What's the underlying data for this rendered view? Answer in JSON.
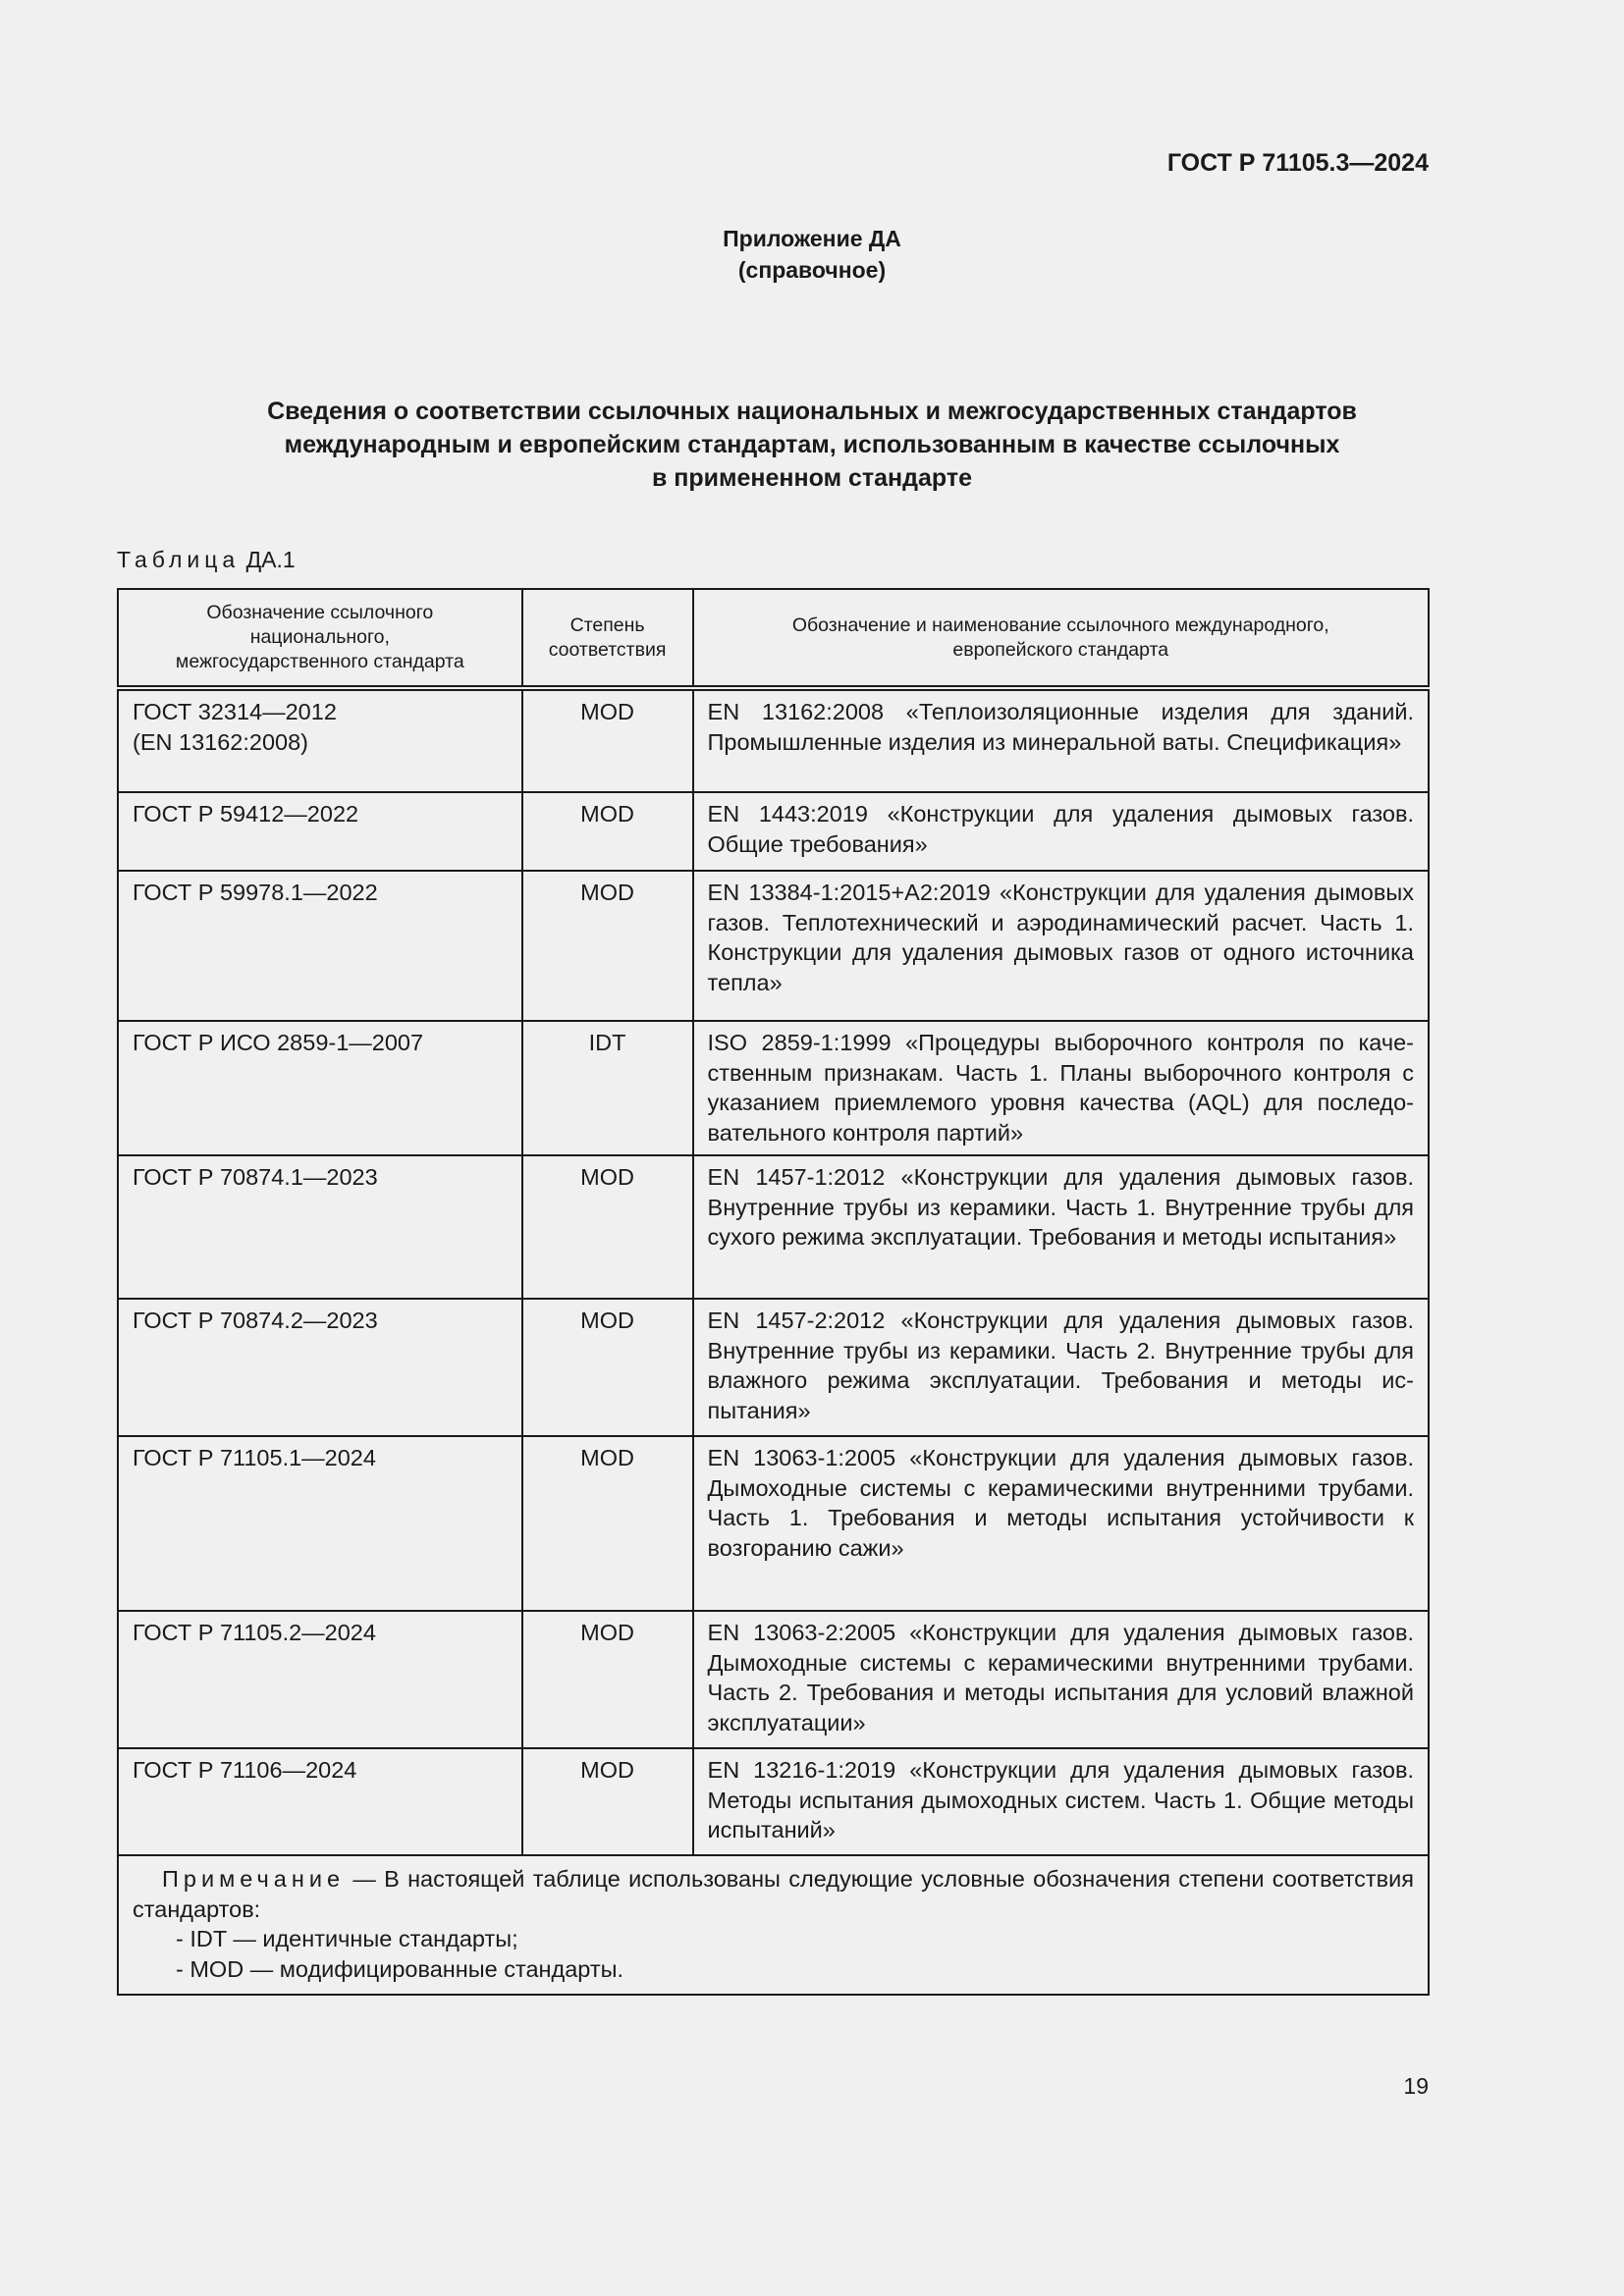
{
  "header": {
    "doc_code": "ГОСТ Р 71105.3—2024"
  },
  "annex": {
    "title": "Приложение ДА",
    "type": "(справочное)"
  },
  "heading": [
    "Сведения о соответствии ссылочных национальных и межгосударственных стандартов",
    "международным и европейским стандартам, использованным в качестве ссылочных",
    "в  примененном стандарте"
  ],
  "table": {
    "label_prefix": "Таблица",
    "label_number": "ДА.1",
    "columns": [
      "Обозначение ссылочного национального, межгосударственного стандарта",
      "Степень соответствия",
      "Обозначение и наименование ссылочного международного, европейского стандарта"
    ],
    "rows": [
      {
        "national": "ГОСТ 32314—2012",
        "national_extra": "(EN 13162:2008)",
        "degree": "MOD",
        "international": "EN 13162:2008 «Теплоизоляционные изделия для зданий. Промышленные изделия из минеральной ваты. Специфика­ция»"
      },
      {
        "national": "ГОСТ Р 59412—2022",
        "degree": "MOD",
        "international": "EN 1443:2019 «Конструкции для удаления дымовых газов. Общие требования»"
      },
      {
        "national": "ГОСТ Р 59978.1—2022",
        "degree": "MOD",
        "international": "EN 13384-1:2015+A2:2019 «Конструкции для удаления ды­мовых газов. Теплотехнический и аэродинамический расчет. Часть 1. Конструкции для удаления дымовых газов от одного источника тепла»"
      },
      {
        "national": "ГОСТ Р ИСО 2859-1—2007",
        "degree": "IDT",
        "international": "ISO 2859-1:1999 «Процедуры выборочного контроля по каче­ственным признакам. Часть 1. Планы выборочного контроля с указанием приемлемого уровня качества (AQL) для последо­вательного контроля партий»"
      },
      {
        "national": "ГОСТ Р 70874.1—2023",
        "degree": "MOD",
        "international": "EN 1457-1:2012 «Конструкции для удаления дымовых газов. Внутренние трубы из керамики. Часть 1. Внутренние трубы для сухого режима эксплуатации. Требования и методы ис­пытания»"
      },
      {
        "national": "ГОСТ Р 70874.2—2023",
        "degree": "MOD",
        "international": "EN 1457-2:2012 «Конструкции для удаления дымовых газов. Внутренние трубы из керамики. Часть 2. Внутренние трубы для влажного режима эксплуатации. Требования и методы ис­пытания»"
      },
      {
        "national": "ГОСТ Р 71105.1—2024",
        "degree": "MOD",
        "international": "EN 13063-1:2005 «Конструкции для удаления дымовых газов. Дымоходные системы с керамическими внутренними труба­ми. Часть 1. Требования и методы испытания устойчивости к возгоранию сажи»"
      },
      {
        "national": "ГОСТ Р 71105.2—2024",
        "degree": "MOD",
        "international": "EN 13063-2:2005 «Конструкции для удаления дымовых газов. Дымоходные системы с керамическими внутренними труба­ми. Часть 2. Требования и методы испытания для условий влажной эксплуатации»"
      },
      {
        "national": "ГОСТ Р 71106—2024",
        "degree": "MOD",
        "international": "EN 13216-1:2019 «Конструкции для удаления дымовых газов. Методы испытания дымоходных систем. Часть 1. Общие ме­тоды испытаний»"
      }
    ],
    "note": {
      "lead": "Примечание",
      "text": " — В настоящей таблице использованы следующие условные обозначения степени соот­ветствия стандартов:",
      "items": [
        "- IDT — идентичные стандарты;",
        "- MOD — модифицированные стандарты."
      ]
    }
  },
  "footer": {
    "page_number": "19"
  }
}
